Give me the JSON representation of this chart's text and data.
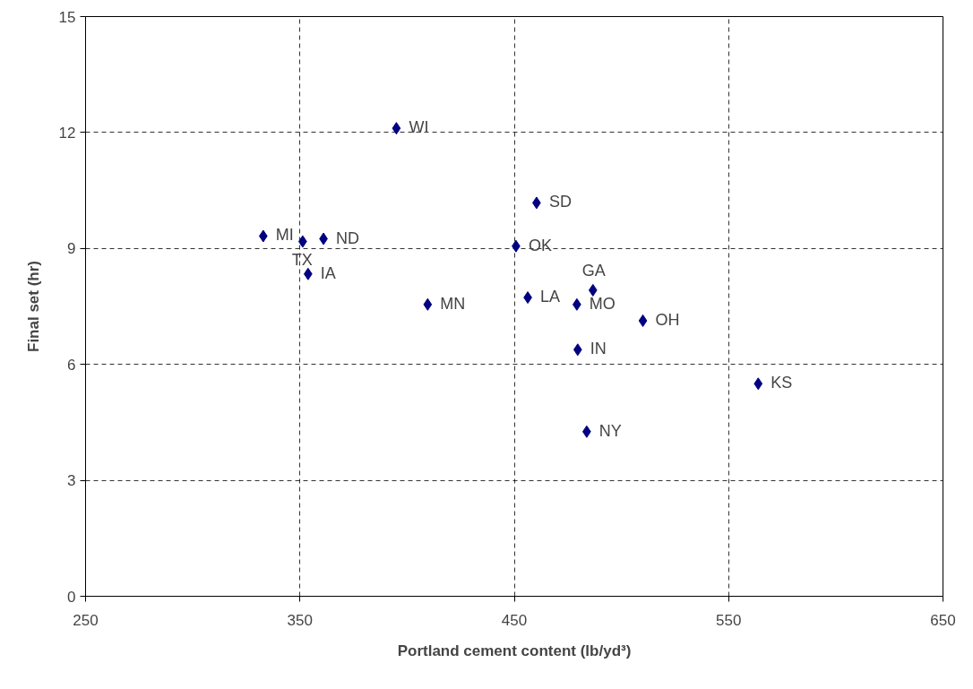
{
  "chart_data": {
    "type": "scatter",
    "xlabel": "Portland cement content (lb/yd³)",
    "ylabel": "Final set (hr)",
    "x": [
      332.9,
      351.3,
      361,
      353.8,
      395,
      409.6,
      460.4,
      450.8,
      456.3,
      479.2,
      486.7,
      510,
      479.6,
      483.8,
      563.8
    ],
    "series": [
      {
        "color": "#000080",
        "values": [
          9.32,
          9.18,
          9.25,
          8.34,
          12.11,
          7.55,
          10.18,
          9.06,
          7.73,
          7.55,
          7.92,
          7.13,
          6.38,
          4.26,
          5.5
        ]
      }
    ],
    "annotations": [
      {
        "text": "MI",
        "x": 332.9,
        "y": 9.32
      },
      {
        "text": "TX",
        "x": 351.3,
        "y": 9.18
      },
      {
        "text": "ND",
        "x": 361,
        "y": 9.25
      },
      {
        "text": "IA",
        "x": 353.8,
        "y": 8.34
      },
      {
        "text": "WI",
        "x": 395,
        "y": 12.11
      },
      {
        "text": "MN",
        "x": 409.6,
        "y": 7.55
      },
      {
        "text": "SD",
        "x": 460.4,
        "y": 10.18
      },
      {
        "text": "OK",
        "x": 450.8,
        "y": 9.06
      },
      {
        "text": "LA",
        "x": 456.3,
        "y": 7.73
      },
      {
        "text": "MO",
        "x": 479.2,
        "y": 7.55
      },
      {
        "text": "GA",
        "x": 486.7,
        "y": 7.92
      },
      {
        "text": "OH",
        "x": 510,
        "y": 7.13
      },
      {
        "text": "IN",
        "x": 479.6,
        "y": 6.38
      },
      {
        "text": "NY",
        "x": 483.8,
        "y": 4.26
      },
      {
        "text": "KS",
        "x": 563.8,
        "y": 5.5
      }
    ],
    "xlim": [
      250,
      650
    ],
    "xticks": [
      250,
      350,
      450,
      550,
      650
    ],
    "ylim": [
      0,
      15
    ],
    "yticks": [
      0,
      3,
      6,
      9,
      12,
      15
    ],
    "grid": true,
    "marker": "diamond"
  }
}
